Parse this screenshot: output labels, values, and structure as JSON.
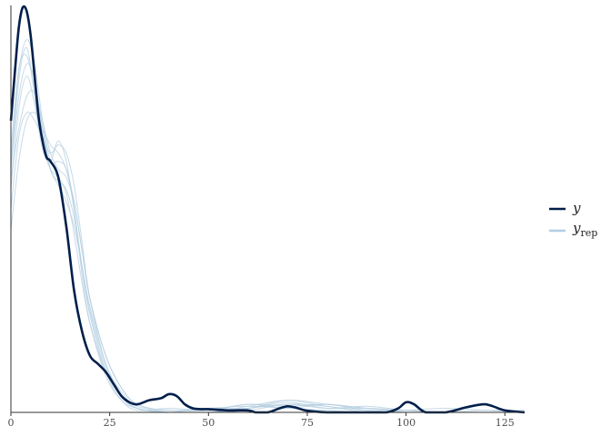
{
  "chart_data": {
    "type": "line",
    "title": "",
    "xlabel": "",
    "ylabel": "",
    "xlim": [
      0,
      130
    ],
    "ylim": [
      0,
      1
    ],
    "x_ticks": [
      "0",
      "25",
      "50",
      "75",
      "100",
      "125"
    ],
    "x_tick_values": [
      0,
      25,
      50,
      75,
      100,
      125
    ],
    "grid": false,
    "legend": {
      "placement": "right"
    },
    "colors": {
      "y": "#011f4b",
      "yrep": "#b3cde0"
    },
    "series": [
      {
        "name": "y",
        "kind": "observed",
        "x": [
          0,
          1,
          2,
          3,
          4,
          5,
          6,
          7,
          8,
          9,
          10,
          12,
          14,
          16,
          18,
          20,
          22,
          24,
          26,
          28,
          30,
          32,
          35,
          38,
          40,
          42,
          44,
          46,
          48,
          50,
          55,
          60,
          62,
          65,
          68,
          70,
          72,
          75,
          80,
          85,
          90,
          95,
          98,
          100,
          102,
          105,
          110,
          115,
          118,
          120,
          122,
          125,
          130
        ],
        "values": [
          0.72,
          0.84,
          0.95,
          1.0,
          0.99,
          0.93,
          0.83,
          0.73,
          0.67,
          0.63,
          0.62,
          0.58,
          0.46,
          0.3,
          0.2,
          0.14,
          0.12,
          0.1,
          0.07,
          0.04,
          0.025,
          0.02,
          0.03,
          0.035,
          0.045,
          0.04,
          0.02,
          0.01,
          0.008,
          0.008,
          0.005,
          0.005,
          0.0,
          0.0,
          0.01,
          0.015,
          0.012,
          0.004,
          0.0,
          0.0,
          0.0,
          0.0,
          0.01,
          0.025,
          0.02,
          0.0,
          0.0,
          0.012,
          0.018,
          0.02,
          0.015,
          0.005,
          0.0
        ]
      },
      {
        "name": "y_rep",
        "kind": "replicated",
        "draws": [
          {
            "x": [
              0,
              2,
              4,
              6,
              8,
              10,
              12,
              14,
              16,
              18,
              20,
              24,
              28,
              32,
              40,
              50,
              60,
              70,
              80,
              90,
              100,
              110,
              120,
              130
            ],
            "values": [
              0.6,
              0.82,
              0.9,
              0.78,
              0.66,
              0.6,
              0.58,
              0.54,
              0.44,
              0.32,
              0.22,
              0.1,
              0.04,
              0.01,
              0.0,
              0.0,
              0.015,
              0.03,
              0.015,
              0.005,
              0.0,
              0.0,
              0.0,
              0.0
            ]
          },
          {
            "x": [
              0,
              2,
              4,
              6,
              8,
              10,
              12,
              14,
              16,
              18,
              20,
              24,
              28,
              32,
              40,
              50,
              60,
              70,
              80,
              90,
              100,
              110,
              120,
              130
            ],
            "values": [
              0.55,
              0.75,
              0.83,
              0.76,
              0.65,
              0.62,
              0.67,
              0.62,
              0.5,
              0.36,
              0.24,
              0.1,
              0.03,
              0.005,
              0.01,
              0.005,
              0.02,
              0.01,
              0.02,
              0.005,
              0.0,
              0.0,
              0.0,
              0.0
            ]
          },
          {
            "x": [
              0,
              2,
              4,
              6,
              8,
              10,
              12,
              14,
              16,
              18,
              20,
              24,
              28,
              32,
              40,
              50,
              60,
              70,
              80,
              90,
              100,
              110,
              120,
              130
            ],
            "values": [
              0.5,
              0.68,
              0.74,
              0.72,
              0.68,
              0.64,
              0.66,
              0.64,
              0.56,
              0.42,
              0.28,
              0.12,
              0.04,
              0.01,
              0.0,
              0.01,
              0.01,
              0.025,
              0.01,
              0.01,
              0.005,
              0.0,
              0.0,
              0.0
            ]
          },
          {
            "x": [
              0,
              2,
              4,
              6,
              8,
              10,
              12,
              14,
              16,
              18,
              20,
              24,
              28,
              32,
              40,
              50,
              60,
              70,
              80,
              90,
              100,
              110,
              120,
              130
            ],
            "values": [
              0.65,
              0.85,
              0.88,
              0.8,
              0.7,
              0.6,
              0.56,
              0.52,
              0.46,
              0.36,
              0.26,
              0.12,
              0.05,
              0.015,
              0.005,
              0.005,
              0.02,
              0.015,
              0.02,
              0.01,
              0.0,
              0.0,
              0.005,
              0.005
            ]
          },
          {
            "x": [
              0,
              2,
              4,
              6,
              8,
              10,
              12,
              14,
              16,
              18,
              20,
              24,
              28,
              32,
              40,
              50,
              60,
              70,
              80,
              90,
              100,
              110,
              120,
              130
            ],
            "values": [
              0.58,
              0.7,
              0.78,
              0.79,
              0.72,
              0.64,
              0.6,
              0.58,
              0.52,
              0.4,
              0.28,
              0.14,
              0.06,
              0.02,
              0.0,
              0.0,
              0.01,
              0.03,
              0.02,
              0.01,
              0.005,
              0.0,
              0.0,
              0.0
            ]
          },
          {
            "x": [
              0,
              2,
              4,
              6,
              8,
              10,
              12,
              14,
              16,
              18,
              20,
              24,
              28,
              32,
              40,
              50,
              60,
              70,
              80,
              90,
              100,
              110,
              120,
              130
            ],
            "values": [
              0.62,
              0.84,
              0.92,
              0.86,
              0.72,
              0.62,
              0.62,
              0.6,
              0.5,
              0.34,
              0.22,
              0.09,
              0.03,
              0.01,
              0.0,
              0.0,
              0.005,
              0.02,
              0.015,
              0.0,
              0.0,
              0.0,
              0.0,
              0.0
            ]
          },
          {
            "x": [
              0,
              2,
              4,
              6,
              8,
              10,
              12,
              14,
              16,
              18,
              20,
              24,
              28,
              32,
              40,
              50,
              60,
              70,
              80,
              90,
              100,
              110,
              120,
              130
            ],
            "values": [
              0.45,
              0.62,
              0.72,
              0.74,
              0.7,
              0.66,
              0.64,
              0.6,
              0.52,
              0.4,
              0.28,
              0.14,
              0.06,
              0.02,
              0.005,
              0.01,
              0.015,
              0.01,
              0.005,
              0.0,
              0.005,
              0.01,
              0.005,
              0.0
            ]
          },
          {
            "x": [
              0,
              2,
              4,
              6,
              8,
              10,
              12,
              14,
              16,
              18,
              20,
              24,
              28,
              32,
              40,
              50,
              60,
              70,
              80,
              90,
              100,
              110,
              120,
              130
            ],
            "values": [
              0.6,
              0.78,
              0.86,
              0.82,
              0.7,
              0.6,
              0.57,
              0.55,
              0.48,
              0.36,
              0.25,
              0.11,
              0.04,
              0.01,
              0.0,
              0.0,
              0.01,
              0.02,
              0.01,
              0.015,
              0.005,
              0.0,
              0.0,
              0.0
            ]
          }
        ]
      }
    ],
    "legend_entries": [
      {
        "label": "y",
        "subscript": ""
      },
      {
        "label": "y",
        "subscript": "rep"
      }
    ]
  }
}
